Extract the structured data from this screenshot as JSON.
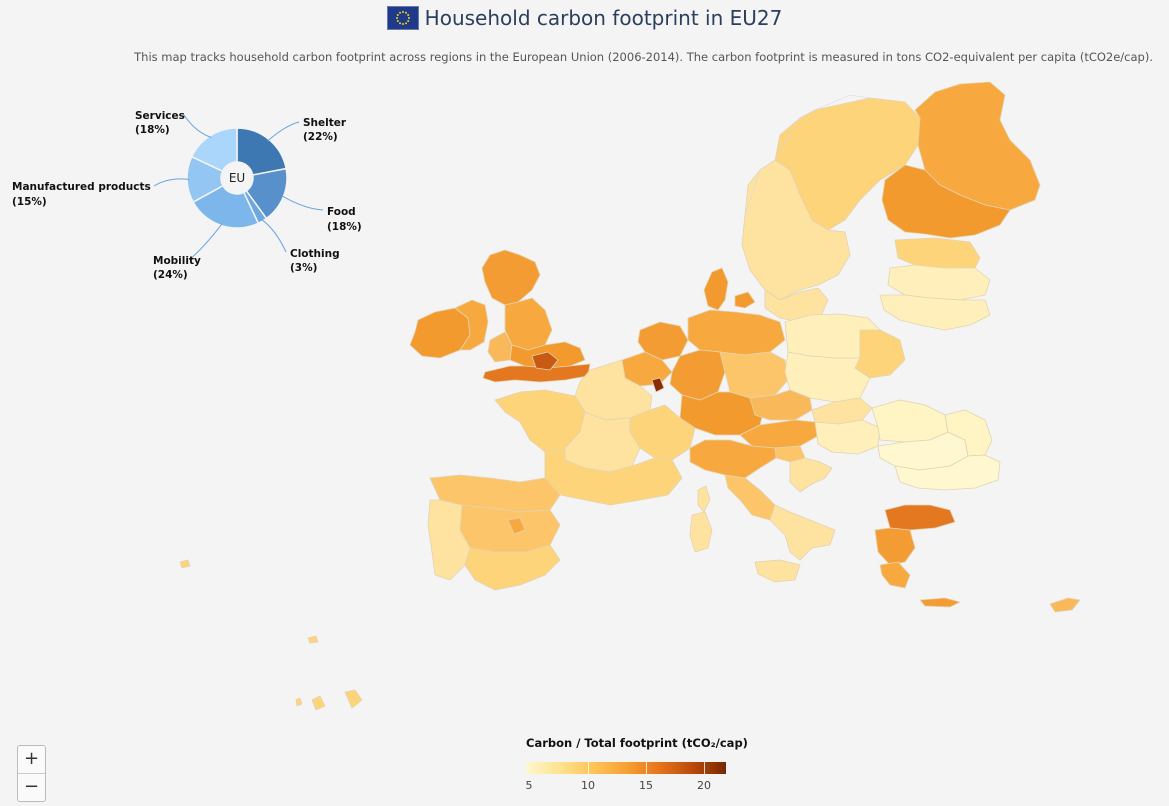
{
  "header": {
    "title": "Household carbon footprint in EU27",
    "subtitle": "This map tracks household carbon footprint across regions in the European Union (2006-2014). The carbon footprint is measured in tons CO2-equivalent per capita (tCO2e/cap)."
  },
  "donut": {
    "center_label": "EU",
    "slices": [
      {
        "name": "Shelter",
        "pct": "(22%)",
        "value": 22,
        "color": "#3e78b2"
      },
      {
        "name": "Food",
        "pct": "(18%)",
        "value": 18,
        "color": "#5890cc"
      },
      {
        "name": "Clothing",
        "pct": "(3%)",
        "value": 3,
        "color": "#6ea6de"
      },
      {
        "name": "Mobility",
        "pct": "(24%)",
        "value": 24,
        "color": "#7db6ea"
      },
      {
        "name": "Manufactured products",
        "pct": "(15%)",
        "value": 15,
        "color": "#93c6f2"
      },
      {
        "name": "Services",
        "pct": "(18%)",
        "value": 18,
        "color": "#a9d6fa"
      }
    ]
  },
  "legend": {
    "title": "Carbon / Total footprint (tCO₂/cap)",
    "ticks": [
      "5",
      "10",
      "15",
      "20"
    ],
    "min": 5,
    "max": 22
  },
  "zoom": {
    "in_label": "+",
    "out_label": "−"
  },
  "map_colors": {
    "lightest": "#fff4c4",
    "light": "#fee3a0",
    "mid_light": "#fdd47a",
    "mid": "#f9b95a",
    "orange": "#f49c34",
    "dark_orange": "#e47820",
    "darkest": "#a93a0a",
    "border": "#d9c9a8"
  }
}
